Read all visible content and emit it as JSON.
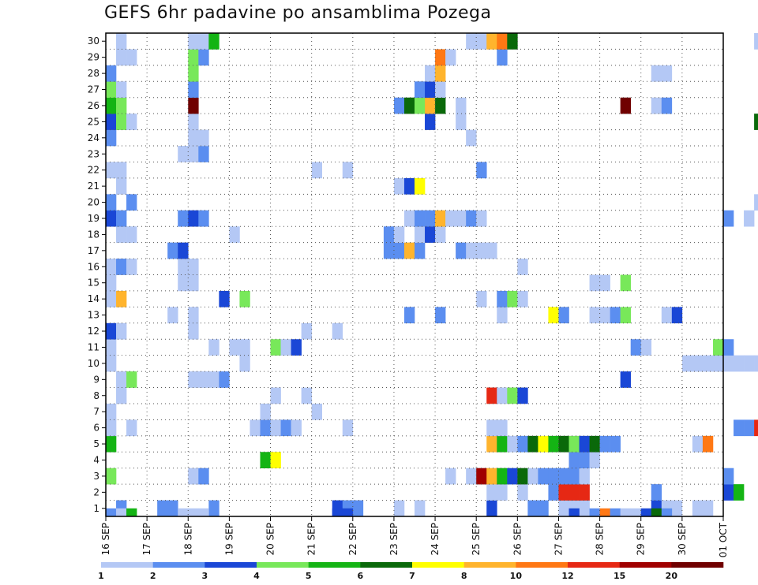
{
  "chart_data": {
    "type": "heatmap",
    "title": "GEFS 6hr padavine po ansamblima Pozega",
    "y_ticks": [
      "1",
      "2",
      "3",
      "4",
      "5",
      "6",
      "7",
      "8",
      "9",
      "10",
      "11",
      "12",
      "13",
      "14",
      "15",
      "16",
      "17",
      "18",
      "19",
      "20",
      "21",
      "22",
      "23",
      "24",
      "25",
      "26",
      "27",
      "28",
      "29",
      "30"
    ],
    "x_ticks": [
      "16 SEP",
      "17 SEP",
      "18 SEP",
      "19 SEP",
      "20 SEP",
      "21 SEP",
      "22 SEP",
      "23 SEP",
      "24 SEP",
      "25 SEP",
      "26 SEP",
      "27 SEP",
      "28 SEP",
      "29 SEP",
      "30 SEP",
      "01 OCT"
    ],
    "x_range": [
      "16 SEP",
      "01 OCT"
    ],
    "y_range": [
      0,
      30
    ],
    "steps_per_day": 4,
    "grid": true,
    "legend": {
      "position": "bottom",
      "colors": [
        "#b4c8f5",
        "#5b8ef0",
        "#1a47d6",
        "#78e85a",
        "#14b414",
        "#0a690a",
        "#ffff00",
        "#ffb42d",
        "#ff7814",
        "#e62814",
        "#a00000",
        "#700000"
      ],
      "labels": [
        "1",
        "2",
        "3",
        "4",
        "5",
        "6",
        "7",
        "8",
        "10",
        "12",
        "15",
        "20"
      ]
    },
    "cells": [
      {
        "m": 0,
        "s": 1,
        "c": 2
      },
      {
        "m": 0,
        "s": 5,
        "c": 2
      },
      {
        "m": 0,
        "s": 6,
        "c": 2
      },
      {
        "m": 0,
        "s": 10,
        "c": 2
      },
      {
        "m": 0,
        "s": 22,
        "c": 3
      },
      {
        "m": 0,
        "s": 23,
        "c": 2
      },
      {
        "m": 0,
        "s": 24,
        "c": 2
      },
      {
        "m": 0,
        "s": 28,
        "c": 1
      },
      {
        "m": 0,
        "s": 30,
        "c": 1
      },
      {
        "m": 0,
        "s": 37,
        "c": 3
      },
      {
        "m": 0,
        "s": 41,
        "c": 2
      },
      {
        "m": 0,
        "s": 42,
        "c": 2
      },
      {
        "m": 0,
        "s": 44,
        "c": 1
      },
      {
        "m": 0,
        "s": 45,
        "c": 1
      },
      {
        "m": 0,
        "s": 46,
        "c": 1
      },
      {
        "m": 0,
        "s": 53,
        "c": 3
      },
      {
        "m": 0,
        "s": 54,
        "c": 1
      },
      {
        "m": 0,
        "s": 55,
        "c": 1
      },
      {
        "m": 0,
        "s": 57,
        "c": 1
      },
      {
        "m": 0,
        "s": 58,
        "c": 1
      },
      {
        "m": 1,
        "s": 37,
        "c": 1
      },
      {
        "m": 1,
        "s": 38,
        "c": 1
      },
      {
        "m": 1,
        "s": 40,
        "c": 1
      },
      {
        "m": 1,
        "s": 43,
        "c": 2
      },
      {
        "m": 1,
        "s": 44,
        "c": 10
      },
      {
        "m": 1,
        "s": 45,
        "c": 10
      },
      {
        "m": 1,
        "s": 46,
        "c": 10
      },
      {
        "m": 1,
        "s": 53,
        "c": 2
      },
      {
        "m": 1,
        "s": 60,
        "c": 3
      },
      {
        "m": 1,
        "s": 61,
        "c": 5
      },
      {
        "m": 2,
        "s": 0,
        "c": 4
      },
      {
        "m": 2,
        "s": 8,
        "c": 1
      },
      {
        "m": 2,
        "s": 9,
        "c": 2
      },
      {
        "m": 2,
        "s": 33,
        "c": 1
      },
      {
        "m": 2,
        "s": 35,
        "c": 1
      },
      {
        "m": 2,
        "s": 36,
        "c": 11
      },
      {
        "m": 2,
        "s": 37,
        "c": 8
      },
      {
        "m": 2,
        "s": 38,
        "c": 5
      },
      {
        "m": 2,
        "s": 39,
        "c": 3
      },
      {
        "m": 2,
        "s": 40,
        "c": 6
      },
      {
        "m": 2,
        "s": 41,
        "c": 1
      },
      {
        "m": 2,
        "s": 42,
        "c": 2
      },
      {
        "m": 2,
        "s": 43,
        "c": 2
      },
      {
        "m": 2,
        "s": 44,
        "c": 2
      },
      {
        "m": 2,
        "s": 45,
        "c": 2
      },
      {
        "m": 2,
        "s": 46,
        "c": 1
      },
      {
        "m": 2,
        "s": 60,
        "c": 2
      },
      {
        "m": 3,
        "s": 15,
        "c": 5
      },
      {
        "m": 3,
        "s": 16,
        "c": 7
      },
      {
        "m": 3,
        "s": 45,
        "c": 2
      },
      {
        "m": 3,
        "s": 46,
        "c": 2
      },
      {
        "m": 3,
        "s": 47,
        "c": 1
      },
      {
        "m": 4,
        "s": 0,
        "c": 5
      },
      {
        "m": 4,
        "s": 37,
        "c": 8
      },
      {
        "m": 4,
        "s": 38,
        "c": 5
      },
      {
        "m": 4,
        "s": 39,
        "c": 1
      },
      {
        "m": 4,
        "s": 40,
        "c": 2
      },
      {
        "m": 4,
        "s": 41,
        "c": 6
      },
      {
        "m": 4,
        "s": 42,
        "c": 7
      },
      {
        "m": 4,
        "s": 43,
        "c": 5
      },
      {
        "m": 4,
        "s": 44,
        "c": 6
      },
      {
        "m": 4,
        "s": 45,
        "c": 4
      },
      {
        "m": 4,
        "s": 46,
        "c": 3
      },
      {
        "m": 4,
        "s": 47,
        "c": 6
      },
      {
        "m": 4,
        "s": 48,
        "c": 2
      },
      {
        "m": 4,
        "s": 49,
        "c": 2
      },
      {
        "m": 4,
        "s": 57,
        "c": 1
      },
      {
        "m": 4,
        "s": 58,
        "c": 9
      },
      {
        "m": 5,
        "s": 0,
        "c": 1
      },
      {
        "m": 5,
        "s": 2,
        "c": 1
      },
      {
        "m": 5,
        "s": 14,
        "c": 1
      },
      {
        "m": 5,
        "s": 15,
        "c": 2
      },
      {
        "m": 5,
        "s": 16,
        "c": 1
      },
      {
        "m": 5,
        "s": 17,
        "c": 2
      },
      {
        "m": 5,
        "s": 18,
        "c": 1
      },
      {
        "m": 5,
        "s": 23,
        "c": 1
      },
      {
        "m": 5,
        "s": 37,
        "c": 1
      },
      {
        "m": 5,
        "s": 38,
        "c": 1
      },
      {
        "m": 5,
        "s": 61,
        "c": 2
      },
      {
        "m": 5,
        "s": 62,
        "c": 2
      },
      {
        "m": 5,
        "s": 63,
        "c": 10
      },
      {
        "m": 6,
        "s": 0,
        "c": 1
      },
      {
        "m": 6,
        "s": 15,
        "c": 1
      },
      {
        "m": 6,
        "s": 20,
        "c": 1
      },
      {
        "m": 7,
        "s": 1,
        "c": 1
      },
      {
        "m": 7,
        "s": 16,
        "c": 1
      },
      {
        "m": 7,
        "s": 19,
        "c": 1
      },
      {
        "m": 7,
        "s": 37,
        "c": 10
      },
      {
        "m": 7,
        "s": 38,
        "c": 1
      },
      {
        "m": 7,
        "s": 39,
        "c": 4
      },
      {
        "m": 7,
        "s": 40,
        "c": 3
      },
      {
        "m": 8,
        "s": 1,
        "c": 1
      },
      {
        "m": 8,
        "s": 2,
        "c": 4
      },
      {
        "m": 8,
        "s": 8,
        "c": 1
      },
      {
        "m": 8,
        "s": 9,
        "c": 1
      },
      {
        "m": 8,
        "s": 10,
        "c": 1
      },
      {
        "m": 8,
        "s": 11,
        "c": 2
      },
      {
        "m": 8,
        "s": 50,
        "c": 3
      },
      {
        "m": 9,
        "s": 0,
        "c": 1
      },
      {
        "m": 9,
        "s": 13,
        "c": 1
      },
      {
        "m": 9,
        "s": 56,
        "c": 1
      },
      {
        "m": 9,
        "s": 57,
        "c": 1
      },
      {
        "m": 9,
        "s": 58,
        "c": 1
      },
      {
        "m": 9,
        "s": 59,
        "c": 1
      },
      {
        "m": 9,
        "s": 60,
        "c": 1
      },
      {
        "m": 9,
        "s": 61,
        "c": 1
      },
      {
        "m": 9,
        "s": 62,
        "c": 1
      },
      {
        "m": 9,
        "s": 63,
        "c": 1
      },
      {
        "m": 9,
        "s": 64,
        "c": 1
      },
      {
        "m": 10,
        "s": 0,
        "c": 1
      },
      {
        "m": 10,
        "s": 10,
        "c": 1
      },
      {
        "m": 10,
        "s": 12,
        "c": 1
      },
      {
        "m": 10,
        "s": 13,
        "c": 1
      },
      {
        "m": 10,
        "s": 16,
        "c": 4
      },
      {
        "m": 10,
        "s": 17,
        "c": 1
      },
      {
        "m": 10,
        "s": 18,
        "c": 3
      },
      {
        "m": 10,
        "s": 51,
        "c": 2
      },
      {
        "m": 10,
        "s": 52,
        "c": 1
      },
      {
        "m": 10,
        "s": 59,
        "c": 4
      },
      {
        "m": 10,
        "s": 60,
        "c": 2
      },
      {
        "m": 11,
        "s": 0,
        "c": 3
      },
      {
        "m": 11,
        "s": 1,
        "c": 1
      },
      {
        "m": 11,
        "s": 8,
        "c": 1
      },
      {
        "m": 11,
        "s": 19,
        "c": 1
      },
      {
        "m": 11,
        "s": 22,
        "c": 1
      },
      {
        "m": 12,
        "s": 6,
        "c": 1
      },
      {
        "m": 12,
        "s": 8,
        "c": 1
      },
      {
        "m": 12,
        "s": 29,
        "c": 2
      },
      {
        "m": 12,
        "s": 32,
        "c": 2
      },
      {
        "m": 12,
        "s": 38,
        "c": 1
      },
      {
        "m": 12,
        "s": 43,
        "c": 7
      },
      {
        "m": 12,
        "s": 44,
        "c": 2
      },
      {
        "m": 12,
        "s": 47,
        "c": 1
      },
      {
        "m": 12,
        "s": 48,
        "c": 1
      },
      {
        "m": 12,
        "s": 49,
        "c": 2
      },
      {
        "m": 12,
        "s": 50,
        "c": 4
      },
      {
        "m": 12,
        "s": 54,
        "c": 1
      },
      {
        "m": 12,
        "s": 55,
        "c": 3
      },
      {
        "m": 13,
        "s": 0,
        "c": 1
      },
      {
        "m": 13,
        "s": 1,
        "c": 8
      },
      {
        "m": 13,
        "s": 11,
        "c": 3
      },
      {
        "m": 13,
        "s": 13,
        "c": 4
      },
      {
        "m": 13,
        "s": 36,
        "c": 1
      },
      {
        "m": 13,
        "s": 38,
        "c": 2
      },
      {
        "m": 13,
        "s": 39,
        "c": 4
      },
      {
        "m": 13,
        "s": 40,
        "c": 1
      },
      {
        "m": 14,
        "s": 0,
        "c": 1
      },
      {
        "m": 14,
        "s": 7,
        "c": 1
      },
      {
        "m": 14,
        "s": 8,
        "c": 1
      },
      {
        "m": 14,
        "s": 47,
        "c": 1
      },
      {
        "m": 14,
        "s": 48,
        "c": 1
      },
      {
        "m": 14,
        "s": 50,
        "c": 4
      },
      {
        "m": 15,
        "s": 0,
        "c": 1
      },
      {
        "m": 15,
        "s": 1,
        "c": 2
      },
      {
        "m": 15,
        "s": 2,
        "c": 1
      },
      {
        "m": 15,
        "s": 7,
        "c": 1
      },
      {
        "m": 15,
        "s": 8,
        "c": 1
      },
      {
        "m": 15,
        "s": 40,
        "c": 1
      },
      {
        "m": 16,
        "s": 6,
        "c": 2
      },
      {
        "m": 16,
        "s": 7,
        "c": 3
      },
      {
        "m": 16,
        "s": 27,
        "c": 2
      },
      {
        "m": 16,
        "s": 28,
        "c": 2
      },
      {
        "m": 16,
        "s": 29,
        "c": 8
      },
      {
        "m": 16,
        "s": 30,
        "c": 2
      },
      {
        "m": 16,
        "s": 34,
        "c": 2
      },
      {
        "m": 16,
        "s": 35,
        "c": 1
      },
      {
        "m": 16,
        "s": 36,
        "c": 1
      },
      {
        "m": 16,
        "s": 37,
        "c": 1
      },
      {
        "m": 17,
        "s": 1,
        "c": 1
      },
      {
        "m": 17,
        "s": 2,
        "c": 1
      },
      {
        "m": 17,
        "s": 12,
        "c": 1
      },
      {
        "m": 17,
        "s": 27,
        "c": 2
      },
      {
        "m": 17,
        "s": 28,
        "c": 1
      },
      {
        "m": 17,
        "s": 30,
        "c": 1
      },
      {
        "m": 17,
        "s": 31,
        "c": 3
      },
      {
        "m": 17,
        "s": 32,
        "c": 1
      },
      {
        "m": 18,
        "s": 0,
        "c": 3
      },
      {
        "m": 18,
        "s": 1,
        "c": 2
      },
      {
        "m": 18,
        "s": 7,
        "c": 2
      },
      {
        "m": 18,
        "s": 8,
        "c": 3
      },
      {
        "m": 18,
        "s": 9,
        "c": 2
      },
      {
        "m": 18,
        "s": 29,
        "c": 1
      },
      {
        "m": 18,
        "s": 30,
        "c": 2
      },
      {
        "m": 18,
        "s": 31,
        "c": 2
      },
      {
        "m": 18,
        "s": 32,
        "c": 8
      },
      {
        "m": 18,
        "s": 33,
        "c": 1
      },
      {
        "m": 18,
        "s": 34,
        "c": 1
      },
      {
        "m": 18,
        "s": 35,
        "c": 2
      },
      {
        "m": 18,
        "s": 36,
        "c": 1
      },
      {
        "m": 18,
        "s": 60,
        "c": 2
      },
      {
        "m": 18,
        "s": 62,
        "c": 1
      },
      {
        "m": 19,
        "s": 0,
        "c": 2
      },
      {
        "m": 19,
        "s": 2,
        "c": 2
      },
      {
        "m": 19,
        "s": 63,
        "c": 1
      },
      {
        "m": 20,
        "s": 1,
        "c": 1
      },
      {
        "m": 20,
        "s": 28,
        "c": 1
      },
      {
        "m": 20,
        "s": 29,
        "c": 3
      },
      {
        "m": 20,
        "s": 30,
        "c": 7
      },
      {
        "m": 21,
        "s": 0,
        "c": 1
      },
      {
        "m": 21,
        "s": 1,
        "c": 1
      },
      {
        "m": 21,
        "s": 20,
        "c": 1
      },
      {
        "m": 21,
        "s": 23,
        "c": 1
      },
      {
        "m": 21,
        "s": 36,
        "c": 2
      },
      {
        "m": 22,
        "s": 7,
        "c": 1
      },
      {
        "m": 22,
        "s": 8,
        "c": 1
      },
      {
        "m": 22,
        "s": 9,
        "c": 2
      },
      {
        "m": 23,
        "s": 0,
        "c": 2
      },
      {
        "m": 23,
        "s": 8,
        "c": 1
      },
      {
        "m": 23,
        "s": 9,
        "c": 1
      },
      {
        "m": 23,
        "s": 35,
        "c": 1
      },
      {
        "m": 24,
        "s": 0,
        "c": 3
      },
      {
        "m": 24,
        "s": 1,
        "c": 4
      },
      {
        "m": 24,
        "s": 2,
        "c": 1
      },
      {
        "m": 24,
        "s": 8,
        "c": 1
      },
      {
        "m": 24,
        "s": 31,
        "c": 3
      },
      {
        "m": 24,
        "s": 34,
        "c": 1
      },
      {
        "m": 24,
        "s": 63,
        "c": 6
      },
      {
        "m": 24,
        "s": 64,
        "c": 3
      },
      {
        "m": 25,
        "s": 0,
        "c": 5
      },
      {
        "m": 25,
        "s": 1,
        "c": 4
      },
      {
        "m": 25,
        "s": 8,
        "c": 12
      },
      {
        "m": 25,
        "s": 28,
        "c": 2
      },
      {
        "m": 25,
        "s": 29,
        "c": 6
      },
      {
        "m": 25,
        "s": 30,
        "c": 4
      },
      {
        "m": 25,
        "s": 31,
        "c": 8
      },
      {
        "m": 25,
        "s": 32,
        "c": 6
      },
      {
        "m": 25,
        "s": 34,
        "c": 1
      },
      {
        "m": 25,
        "s": 50,
        "c": 12
      },
      {
        "m": 25,
        "s": 53,
        "c": 1
      },
      {
        "m": 25,
        "s": 54,
        "c": 2
      },
      {
        "m": 26,
        "s": 0,
        "c": 4
      },
      {
        "m": 26,
        "s": 1,
        "c": 1
      },
      {
        "m": 26,
        "s": 8,
        "c": 2
      },
      {
        "m": 26,
        "s": 30,
        "c": 2
      },
      {
        "m": 26,
        "s": 31,
        "c": 3
      },
      {
        "m": 26,
        "s": 32,
        "c": 1
      },
      {
        "m": 27,
        "s": 0,
        "c": 2
      },
      {
        "m": 27,
        "s": 8,
        "c": 4
      },
      {
        "m": 27,
        "s": 31,
        "c": 1
      },
      {
        "m": 27,
        "s": 32,
        "c": 8
      },
      {
        "m": 27,
        "s": 53,
        "c": 1
      },
      {
        "m": 27,
        "s": 54,
        "c": 1
      },
      {
        "m": 28,
        "s": 1,
        "c": 1
      },
      {
        "m": 28,
        "s": 2,
        "c": 1
      },
      {
        "m": 28,
        "s": 8,
        "c": 4
      },
      {
        "m": 28,
        "s": 9,
        "c": 2
      },
      {
        "m": 28,
        "s": 32,
        "c": 9
      },
      {
        "m": 28,
        "s": 33,
        "c": 1
      },
      {
        "m": 28,
        "s": 38,
        "c": 2
      },
      {
        "m": 29,
        "s": 1,
        "c": 1
      },
      {
        "m": 29,
        "s": 8,
        "c": 1
      },
      {
        "m": 29,
        "s": 9,
        "c": 1
      },
      {
        "m": 29,
        "s": 10,
        "c": 5
      },
      {
        "m": 29,
        "s": 35,
        "c": 1
      },
      {
        "m": 29,
        "s": 36,
        "c": 1
      },
      {
        "m": 29,
        "s": 37,
        "c": 8
      },
      {
        "m": 29,
        "s": 38,
        "c": 9
      },
      {
        "m": 29,
        "s": 39,
        "c": 6
      },
      {
        "m": 29,
        "s": 63,
        "c": 1
      }
    ],
    "bottom_strip": [
      {
        "s": 0,
        "c": 2
      },
      {
        "s": 1,
        "c": 1
      },
      {
        "s": 2,
        "c": 5
      },
      {
        "s": 7,
        "c": 1
      },
      {
        "s": 8,
        "c": 1
      },
      {
        "s": 9,
        "c": 1
      },
      {
        "s": 22,
        "c": 3
      },
      {
        "s": 23,
        "c": 3
      },
      {
        "s": 45,
        "c": 3
      },
      {
        "s": 47,
        "c": 2
      },
      {
        "s": 48,
        "c": 9
      },
      {
        "s": 49,
        "c": 2
      },
      {
        "s": 50,
        "c": 1
      },
      {
        "s": 51,
        "c": 1
      },
      {
        "s": 52,
        "c": 3
      },
      {
        "s": 53,
        "c": 6
      },
      {
        "s": 54,
        "c": 2
      }
    ]
  }
}
